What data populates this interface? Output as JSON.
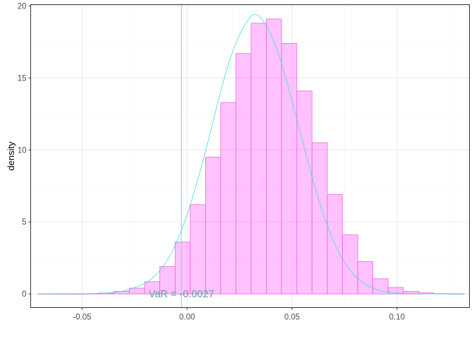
{
  "chart_data": {
    "type": "bar",
    "ylabel": "density",
    "xlabel": "",
    "xlim": [
      -0.0745,
      0.1345
    ],
    "ylim": [
      -0.95,
      20.1
    ],
    "x_ticks": [
      -0.05,
      0.0,
      0.05,
      0.1
    ],
    "x_tick_labels": [
      "-0.05",
      "0.00",
      "0.05",
      "0.10"
    ],
    "y_ticks": [
      0,
      5,
      10,
      15,
      20
    ],
    "y_tick_labels": [
      "0",
      "5",
      "10",
      "15",
      "20"
    ],
    "grid": true,
    "bin_width": 0.00725,
    "bins": [
      {
        "x0": -0.071,
        "x1": -0.0637,
        "y": 0.01
      },
      {
        "x0": -0.0637,
        "x1": -0.0565,
        "y": 0.0
      },
      {
        "x0": -0.0565,
        "x1": -0.0492,
        "y": 0.0
      },
      {
        "x0": -0.0492,
        "x1": -0.042,
        "y": 0.02
      },
      {
        "x0": -0.042,
        "x1": -0.0347,
        "y": 0.06
      },
      {
        "x0": -0.0347,
        "x1": -0.0275,
        "y": 0.18
      },
      {
        "x0": -0.0275,
        "x1": -0.0202,
        "y": 0.4
      },
      {
        "x0": -0.0202,
        "x1": -0.013,
        "y": 0.85
      },
      {
        "x0": -0.013,
        "x1": -0.0057,
        "y": 1.9
      },
      {
        "x0": -0.0057,
        "x1": 0.0015,
        "y": 3.6
      },
      {
        "x0": 0.0015,
        "x1": 0.0088,
        "y": 6.2
      },
      {
        "x0": 0.0088,
        "x1": 0.016,
        "y": 9.5
      },
      {
        "x0": 0.016,
        "x1": 0.0233,
        "y": 13.3
      },
      {
        "x0": 0.0233,
        "x1": 0.0305,
        "y": 16.7
      },
      {
        "x0": 0.0305,
        "x1": 0.0378,
        "y": 18.8
      },
      {
        "x0": 0.0378,
        "x1": 0.045,
        "y": 19.1
      },
      {
        "x0": 0.045,
        "x1": 0.0523,
        "y": 17.4
      },
      {
        "x0": 0.0523,
        "x1": 0.0595,
        "y": 14.1
      },
      {
        "x0": 0.0595,
        "x1": 0.0668,
        "y": 10.5
      },
      {
        "x0": 0.0668,
        "x1": 0.074,
        "y": 6.9
      },
      {
        "x0": 0.074,
        "x1": 0.0813,
        "y": 4.1
      },
      {
        "x0": 0.0813,
        "x1": 0.0885,
        "y": 2.25
      },
      {
        "x0": 0.0885,
        "x1": 0.0958,
        "y": 1.05
      },
      {
        "x0": 0.0958,
        "x1": 0.103,
        "y": 0.45
      },
      {
        "x0": 0.103,
        "x1": 0.1103,
        "y": 0.18
      },
      {
        "x0": 0.1103,
        "x1": 0.1175,
        "y": 0.07
      },
      {
        "x0": 0.1175,
        "x1": 0.1248,
        "y": 0.02
      },
      {
        "x0": 0.1248,
        "x1": 0.132,
        "y": 0.01
      }
    ],
    "density_curve": {
      "x": [
        -0.071,
        -0.05,
        -0.04,
        -0.03,
        -0.02,
        -0.015,
        -0.01,
        -0.005,
        0.0,
        0.005,
        0.01,
        0.015,
        0.02,
        0.025,
        0.03,
        0.032,
        0.035,
        0.04,
        0.045,
        0.05,
        0.055,
        0.06,
        0.065,
        0.07,
        0.075,
        0.08,
        0.085,
        0.09,
        0.095,
        0.1,
        0.11,
        0.12,
        0.132
      ],
      "y": [
        0.0,
        0.01,
        0.05,
        0.22,
        0.75,
        1.3,
        2.2,
        3.6,
        5.5,
        7.9,
        10.6,
        13.5,
        16.1,
        18.0,
        19.2,
        19.4,
        19.2,
        18.0,
        16.0,
        13.4,
        10.6,
        7.9,
        5.5,
        3.6,
        2.2,
        1.25,
        0.65,
        0.32,
        0.15,
        0.06,
        0.01,
        0.0,
        0.0
      ]
    },
    "var_line": {
      "x": -0.0027
    },
    "annotation": {
      "text": "VaR =  -0.0027",
      "x": -0.0027,
      "y": 0.0
    },
    "colors": {
      "bar_fill": "#ff66ff",
      "bar_fill_opacity": 0.4,
      "bar_stroke": "#e36be3",
      "density": "#40e0d0",
      "var_line": "#7fd8e6",
      "annotation": "#5f9ea0",
      "grid_major": "#ebebeb",
      "grid_minor": "#f5f5f5",
      "panel_border": "#333333",
      "tick_text": "#4d4d4d"
    }
  }
}
